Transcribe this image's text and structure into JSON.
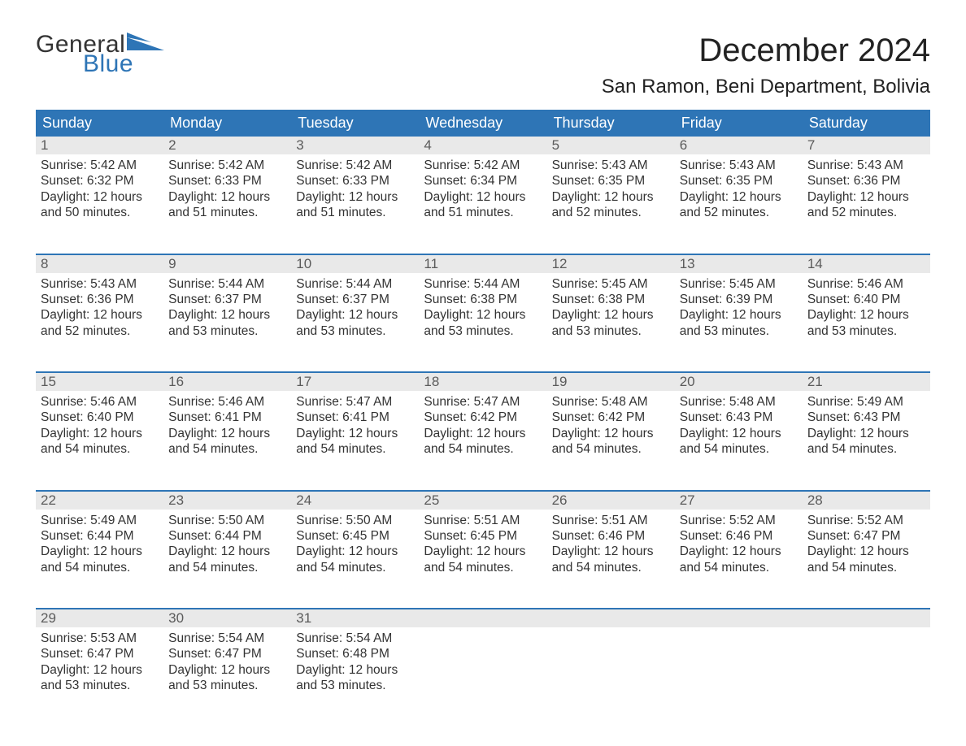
{
  "logo": {
    "line1": "General",
    "line2": "Blue",
    "accent_color": "#2e75b6"
  },
  "title": "December 2024",
  "location": "San Ramon, Beni Department, Bolivia",
  "colors": {
    "header_bg": "#2e75b6",
    "header_text": "#ffffff",
    "daynum_bg": "#e9e9e9",
    "daynum_text": "#5b5b5b",
    "body_text": "#333333",
    "week_divider": "#2e75b6",
    "page_bg": "#ffffff"
  },
  "day_headers": [
    "Sunday",
    "Monday",
    "Tuesday",
    "Wednesday",
    "Thursday",
    "Friday",
    "Saturday"
  ],
  "weeks": [
    [
      {
        "n": "1",
        "sunrise": "Sunrise: 5:42 AM",
        "sunset": "Sunset: 6:32 PM",
        "d1": "Daylight: 12 hours",
        "d2": "and 50 minutes."
      },
      {
        "n": "2",
        "sunrise": "Sunrise: 5:42 AM",
        "sunset": "Sunset: 6:33 PM",
        "d1": "Daylight: 12 hours",
        "d2": "and 51 minutes."
      },
      {
        "n": "3",
        "sunrise": "Sunrise: 5:42 AM",
        "sunset": "Sunset: 6:33 PM",
        "d1": "Daylight: 12 hours",
        "d2": "and 51 minutes."
      },
      {
        "n": "4",
        "sunrise": "Sunrise: 5:42 AM",
        "sunset": "Sunset: 6:34 PM",
        "d1": "Daylight: 12 hours",
        "d2": "and 51 minutes."
      },
      {
        "n": "5",
        "sunrise": "Sunrise: 5:43 AM",
        "sunset": "Sunset: 6:35 PM",
        "d1": "Daylight: 12 hours",
        "d2": "and 52 minutes."
      },
      {
        "n": "6",
        "sunrise": "Sunrise: 5:43 AM",
        "sunset": "Sunset: 6:35 PM",
        "d1": "Daylight: 12 hours",
        "d2": "and 52 minutes."
      },
      {
        "n": "7",
        "sunrise": "Sunrise: 5:43 AM",
        "sunset": "Sunset: 6:36 PM",
        "d1": "Daylight: 12 hours",
        "d2": "and 52 minutes."
      }
    ],
    [
      {
        "n": "8",
        "sunrise": "Sunrise: 5:43 AM",
        "sunset": "Sunset: 6:36 PM",
        "d1": "Daylight: 12 hours",
        "d2": "and 52 minutes."
      },
      {
        "n": "9",
        "sunrise": "Sunrise: 5:44 AM",
        "sunset": "Sunset: 6:37 PM",
        "d1": "Daylight: 12 hours",
        "d2": "and 53 minutes."
      },
      {
        "n": "10",
        "sunrise": "Sunrise: 5:44 AM",
        "sunset": "Sunset: 6:37 PM",
        "d1": "Daylight: 12 hours",
        "d2": "and 53 minutes."
      },
      {
        "n": "11",
        "sunrise": "Sunrise: 5:44 AM",
        "sunset": "Sunset: 6:38 PM",
        "d1": "Daylight: 12 hours",
        "d2": "and 53 minutes."
      },
      {
        "n": "12",
        "sunrise": "Sunrise: 5:45 AM",
        "sunset": "Sunset: 6:38 PM",
        "d1": "Daylight: 12 hours",
        "d2": "and 53 minutes."
      },
      {
        "n": "13",
        "sunrise": "Sunrise: 5:45 AM",
        "sunset": "Sunset: 6:39 PM",
        "d1": "Daylight: 12 hours",
        "d2": "and 53 minutes."
      },
      {
        "n": "14",
        "sunrise": "Sunrise: 5:46 AM",
        "sunset": "Sunset: 6:40 PM",
        "d1": "Daylight: 12 hours",
        "d2": "and 53 minutes."
      }
    ],
    [
      {
        "n": "15",
        "sunrise": "Sunrise: 5:46 AM",
        "sunset": "Sunset: 6:40 PM",
        "d1": "Daylight: 12 hours",
        "d2": "and 54 minutes."
      },
      {
        "n": "16",
        "sunrise": "Sunrise: 5:46 AM",
        "sunset": "Sunset: 6:41 PM",
        "d1": "Daylight: 12 hours",
        "d2": "and 54 minutes."
      },
      {
        "n": "17",
        "sunrise": "Sunrise: 5:47 AM",
        "sunset": "Sunset: 6:41 PM",
        "d1": "Daylight: 12 hours",
        "d2": "and 54 minutes."
      },
      {
        "n": "18",
        "sunrise": "Sunrise: 5:47 AM",
        "sunset": "Sunset: 6:42 PM",
        "d1": "Daylight: 12 hours",
        "d2": "and 54 minutes."
      },
      {
        "n": "19",
        "sunrise": "Sunrise: 5:48 AM",
        "sunset": "Sunset: 6:42 PM",
        "d1": "Daylight: 12 hours",
        "d2": "and 54 minutes."
      },
      {
        "n": "20",
        "sunrise": "Sunrise: 5:48 AM",
        "sunset": "Sunset: 6:43 PM",
        "d1": "Daylight: 12 hours",
        "d2": "and 54 minutes."
      },
      {
        "n": "21",
        "sunrise": "Sunrise: 5:49 AM",
        "sunset": "Sunset: 6:43 PM",
        "d1": "Daylight: 12 hours",
        "d2": "and 54 minutes."
      }
    ],
    [
      {
        "n": "22",
        "sunrise": "Sunrise: 5:49 AM",
        "sunset": "Sunset: 6:44 PM",
        "d1": "Daylight: 12 hours",
        "d2": "and 54 minutes."
      },
      {
        "n": "23",
        "sunrise": "Sunrise: 5:50 AM",
        "sunset": "Sunset: 6:44 PM",
        "d1": "Daylight: 12 hours",
        "d2": "and 54 minutes."
      },
      {
        "n": "24",
        "sunrise": "Sunrise: 5:50 AM",
        "sunset": "Sunset: 6:45 PM",
        "d1": "Daylight: 12 hours",
        "d2": "and 54 minutes."
      },
      {
        "n": "25",
        "sunrise": "Sunrise: 5:51 AM",
        "sunset": "Sunset: 6:45 PM",
        "d1": "Daylight: 12 hours",
        "d2": "and 54 minutes."
      },
      {
        "n": "26",
        "sunrise": "Sunrise: 5:51 AM",
        "sunset": "Sunset: 6:46 PM",
        "d1": "Daylight: 12 hours",
        "d2": "and 54 minutes."
      },
      {
        "n": "27",
        "sunrise": "Sunrise: 5:52 AM",
        "sunset": "Sunset: 6:46 PM",
        "d1": "Daylight: 12 hours",
        "d2": "and 54 minutes."
      },
      {
        "n": "28",
        "sunrise": "Sunrise: 5:52 AM",
        "sunset": "Sunset: 6:47 PM",
        "d1": "Daylight: 12 hours",
        "d2": "and 54 minutes."
      }
    ],
    [
      {
        "n": "29",
        "sunrise": "Sunrise: 5:53 AM",
        "sunset": "Sunset: 6:47 PM",
        "d1": "Daylight: 12 hours",
        "d2": "and 53 minutes."
      },
      {
        "n": "30",
        "sunrise": "Sunrise: 5:54 AM",
        "sunset": "Sunset: 6:47 PM",
        "d1": "Daylight: 12 hours",
        "d2": "and 53 minutes."
      },
      {
        "n": "31",
        "sunrise": "Sunrise: 5:54 AM",
        "sunset": "Sunset: 6:48 PM",
        "d1": "Daylight: 12 hours",
        "d2": "and 53 minutes."
      },
      null,
      null,
      null,
      null
    ]
  ]
}
